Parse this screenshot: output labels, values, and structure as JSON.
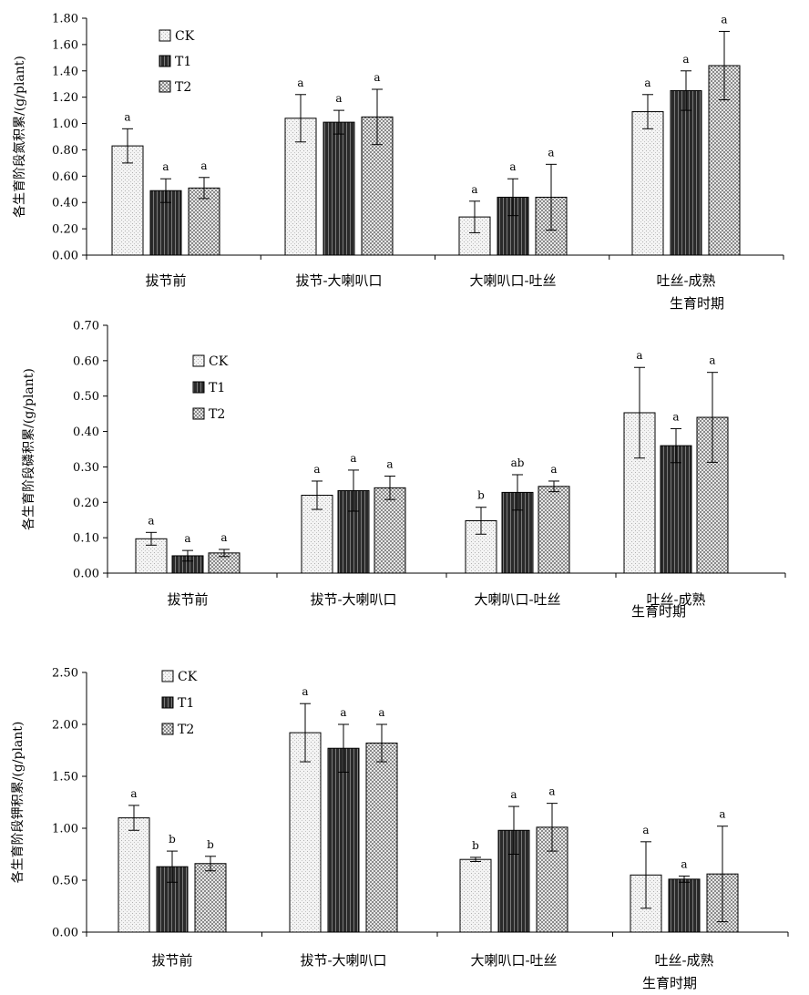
{
  "colors": {
    "CK": "#f2f2f2",
    "T1": "#3a3a3a",
    "T2": "#d6d6d6",
    "axis": "#000000"
  },
  "legend": [
    "CK",
    "T1",
    "T2"
  ],
  "chart_data": [
    {
      "type": "bar",
      "ylabel": "各生育阶段氮积累/(g/plant)",
      "xlabel": "生育时期",
      "ylim": [
        0,
        1.8
      ],
      "yticks": [
        "0.00",
        "0.20",
        "0.40",
        "0.60",
        "0.80",
        "1.00",
        "1.20",
        "1.40",
        "1.60",
        "1.80"
      ],
      "categories": [
        "拔节前",
        "拔节-大喇叭口",
        "大喇叭口-吐丝",
        "吐丝-成熟"
      ],
      "legend_position": "top-left",
      "series": [
        {
          "name": "CK",
          "values": [
            0.83,
            1.04,
            0.29,
            1.09
          ],
          "errors": [
            0.13,
            0.18,
            0.12,
            0.13
          ],
          "letters": [
            "a",
            "a",
            "a",
            "a"
          ]
        },
        {
          "name": "T1",
          "values": [
            0.49,
            1.01,
            0.44,
            1.25
          ],
          "errors": [
            0.09,
            0.09,
            0.14,
            0.15
          ],
          "letters": [
            "a",
            "a",
            "a",
            "a"
          ]
        },
        {
          "name": "T2",
          "values": [
            0.51,
            1.05,
            0.44,
            1.44
          ],
          "errors": [
            0.08,
            0.21,
            0.25,
            0.26
          ],
          "letters": [
            "a",
            "a",
            "a",
            "a"
          ]
        }
      ]
    },
    {
      "type": "bar",
      "ylabel": "各生育阶段磷积累/(g/plant)",
      "xlabel": "生育时期",
      "ylim": [
        0,
        0.7
      ],
      "yticks": [
        "0.00",
        "0.10",
        "0.20",
        "0.30",
        "0.40",
        "0.50",
        "0.60",
        "0.70"
      ],
      "categories": [
        "拔节前",
        "拔节-大喇叭口",
        "大喇叭口-吐丝",
        "吐丝-成熟"
      ],
      "legend_position": "top-left",
      "series": [
        {
          "name": "CK",
          "values": [
            0.097,
            0.22,
            0.148,
            0.453
          ],
          "errors": [
            0.018,
            0.04,
            0.038,
            0.128
          ],
          "letters": [
            "a",
            "a",
            "b",
            "a"
          ]
        },
        {
          "name": "T1",
          "values": [
            0.049,
            0.233,
            0.228,
            0.36
          ],
          "errors": [
            0.015,
            0.058,
            0.05,
            0.048
          ],
          "letters": [
            "a",
            "a",
            "ab",
            "a"
          ]
        },
        {
          "name": "T2",
          "values": [
            0.057,
            0.241,
            0.245,
            0.44
          ],
          "errors": [
            0.01,
            0.033,
            0.015,
            0.127
          ],
          "letters": [
            "a",
            "a",
            "a",
            "a"
          ]
        }
      ]
    },
    {
      "type": "bar",
      "ylabel": "各生育阶段钾积累/(g/plant)",
      "xlabel": "生育时期",
      "ylim": [
        0,
        2.5
      ],
      "yticks": [
        "0.00",
        "0.50",
        "1.00",
        "1.50",
        "2.00",
        "2.50"
      ],
      "categories": [
        "拔节前",
        "拔节-大喇叭口",
        "大喇叭口-吐丝",
        "吐丝-成熟"
      ],
      "legend_position": "top-left",
      "series": [
        {
          "name": "CK",
          "values": [
            1.1,
            1.92,
            0.7,
            0.55
          ],
          "errors": [
            0.12,
            0.28,
            0.02,
            0.32
          ],
          "letters": [
            "a",
            "a",
            "b",
            "a"
          ]
        },
        {
          "name": "T1",
          "values": [
            0.63,
            1.77,
            0.98,
            0.51
          ],
          "errors": [
            0.15,
            0.23,
            0.23,
            0.03
          ],
          "letters": [
            "b",
            "a",
            "a",
            "a"
          ]
        },
        {
          "name": "T2",
          "values": [
            0.66,
            1.82,
            1.01,
            0.56
          ],
          "errors": [
            0.07,
            0.18,
            0.23,
            0.46
          ],
          "letters": [
            "b",
            "a",
            "a",
            "a"
          ]
        }
      ]
    }
  ]
}
